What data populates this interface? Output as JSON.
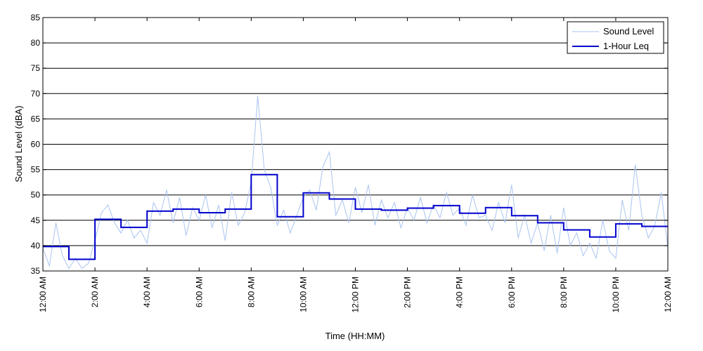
{
  "chart_data": {
    "type": "line",
    "title": "",
    "xlabel": "Time (HH:MM)",
    "ylabel": "Sound Level (dBA)",
    "ylim": [
      35,
      85
    ],
    "yticks": [
      35,
      40,
      45,
      50,
      55,
      60,
      65,
      70,
      75,
      80,
      85
    ],
    "xlim_hours": [
      0,
      24
    ],
    "xtick_hours": [
      0,
      2,
      4,
      6,
      8,
      10,
      12,
      14,
      16,
      18,
      20,
      22,
      24
    ],
    "xtick_labels": [
      "12:00 AM",
      "2:00 AM",
      "4:00 AM",
      "6:00 AM",
      "8:00 AM",
      "10:00 AM",
      "12:00 PM",
      "2:00 PM",
      "4:00 PM",
      "6:00 PM",
      "8:00 PM",
      "10:00 PM",
      "12:00 AM"
    ],
    "grid": "horizontal",
    "legend_position": "top-right",
    "series": [
      {
        "name": "Sound Level",
        "color": "#a9c4f0",
        "style": "thin-line",
        "x_hours": [
          0,
          0.25,
          0.5,
          0.75,
          1,
          1.25,
          1.5,
          1.75,
          2,
          2.25,
          2.5,
          2.75,
          3,
          3.25,
          3.5,
          3.75,
          4,
          4.25,
          4.5,
          4.75,
          5,
          5.25,
          5.5,
          5.75,
          6,
          6.25,
          6.5,
          6.75,
          7,
          7.25,
          7.5,
          7.75,
          8,
          8.25,
          8.5,
          8.75,
          9,
          9.25,
          9.5,
          9.75,
          10,
          10.25,
          10.5,
          10.75,
          11,
          11.25,
          11.5,
          11.75,
          12,
          12.25,
          12.5,
          12.75,
          13,
          13.25,
          13.5,
          13.75,
          14,
          14.25,
          14.5,
          14.75,
          15,
          15.25,
          15.5,
          15.75,
          16,
          16.25,
          16.5,
          16.75,
          17,
          17.25,
          17.5,
          17.75,
          18,
          18.25,
          18.5,
          18.75,
          19,
          19.25,
          19.5,
          19.75,
          20,
          20.25,
          20.5,
          20.75,
          21,
          21.25,
          21.5,
          21.75,
          22,
          22.25,
          22.5,
          22.75,
          23,
          23.25,
          23.5,
          23.75,
          24
        ],
        "values": [
          39.5,
          36.0,
          44.5,
          38.0,
          35.5,
          37.5,
          35.5,
          36.5,
          41.0,
          46.5,
          48.0,
          44.5,
          42.5,
          45.0,
          41.5,
          43.0,
          40.5,
          48.5,
          46.0,
          51.0,
          44.5,
          49.5,
          42.0,
          47.5,
          45.0,
          50.0,
          43.5,
          48.0,
          41.0,
          50.5,
          44.0,
          46.5,
          52.5,
          69.5,
          55.0,
          51.5,
          44.0,
          47.0,
          42.5,
          46.0,
          49.5,
          51.0,
          47.0,
          55.5,
          58.5,
          46.0,
          49.0,
          44.5,
          51.5,
          46.5,
          52.0,
          44.0,
          49.0,
          45.5,
          48.5,
          43.5,
          47.5,
          45.0,
          49.5,
          44.5,
          48.0,
          45.5,
          50.5,
          46.0,
          47.5,
          44.0,
          50.0,
          45.5,
          46.0,
          43.0,
          48.5,
          44.5,
          52.0,
          41.5,
          46.0,
          40.5,
          44.5,
          39.0,
          46.0,
          38.5,
          47.5,
          40.0,
          42.5,
          38.0,
          40.5,
          37.5,
          45.0,
          39.0,
          37.5,
          49.0,
          43.0,
          56.0,
          46.0,
          41.5,
          44.0,
          50.5,
          39.5
        ]
      },
      {
        "name": "1-Hour Leq",
        "color": "#0000cd",
        "style": "step",
        "x_hours": [
          0,
          1,
          2,
          3,
          4,
          5,
          6,
          7,
          8,
          9,
          10,
          11,
          12,
          13,
          14,
          15,
          16,
          17,
          18,
          19,
          20,
          21,
          22,
          23
        ],
        "values": [
          39.8,
          37.3,
          45.2,
          43.6,
          46.8,
          47.2,
          46.5,
          47.2,
          54.0,
          45.7,
          50.4,
          49.2,
          47.2,
          47.0,
          47.4,
          47.9,
          46.4,
          47.5,
          45.9,
          44.5,
          43.1,
          41.7,
          44.3,
          43.8
        ]
      }
    ]
  }
}
